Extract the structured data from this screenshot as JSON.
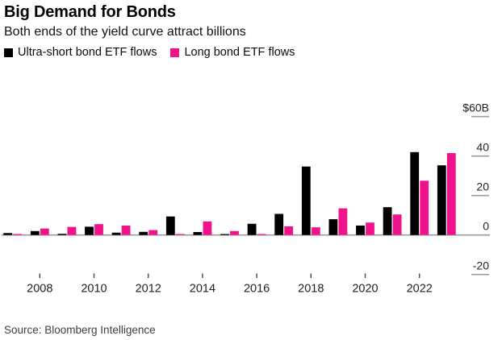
{
  "header": {
    "title": "Big Demand for Bonds",
    "subtitle": "Both ends of the yield curve attract billions"
  },
  "legend": [
    {
      "label": "Ultra-short bond ETF flows",
      "color": "#000000"
    },
    {
      "label": "Long bond ETF flows",
      "color": "#f0128a"
    }
  ],
  "source": "Source: Bloomberg Intelligence",
  "chart_data": {
    "type": "bar",
    "title": "Big Demand for Bonds",
    "subtitle": "Both ends of the yield curve attract billions",
    "unit": "billions USD",
    "categories": [
      2007,
      2008,
      2009,
      2010,
      2011,
      2012,
      2013,
      2014,
      2015,
      2016,
      2017,
      2018,
      2019,
      2020,
      2021,
      2022,
      2023
    ],
    "series": [
      {
        "name": "Ultra-short bond ETF flows",
        "color": "#000000",
        "values": [
          1.0,
          2.0,
          0.6,
          4.2,
          1.2,
          1.6,
          9.4,
          1.5,
          0.4,
          5.7,
          10.7,
          34.7,
          8.0,
          4.8,
          14.1,
          42.0,
          35.3
        ]
      },
      {
        "name": "Long bond ETF flows",
        "color": "#f0128a",
        "values": [
          0.4,
          3.3,
          4.1,
          5.5,
          4.8,
          2.5,
          0.4,
          6.9,
          2.0,
          0.4,
          4.4,
          3.9,
          13.5,
          6.3,
          10.4,
          27.5,
          41.5
        ]
      }
    ],
    "x_axis": {
      "tick_labels": [
        "2008",
        "2010",
        "2012",
        "2014",
        "2016",
        "2018",
        "2020",
        "2022"
      ]
    },
    "y_axis": {
      "ticks": [
        {
          "value": 60,
          "label": "$60B"
        },
        {
          "value": 40,
          "label": "40"
        },
        {
          "value": 20,
          "label": "20"
        },
        {
          "value": 0,
          "label": "0"
        },
        {
          "value": -20,
          "label": "-20"
        }
      ],
      "range": [
        -25,
        65
      ],
      "side": "right"
    },
    "grid": false,
    "legend_position": "top-left",
    "axis_color": "#9b9b9b",
    "tick_color": "#444444",
    "label_color": "#1f1f1f"
  }
}
